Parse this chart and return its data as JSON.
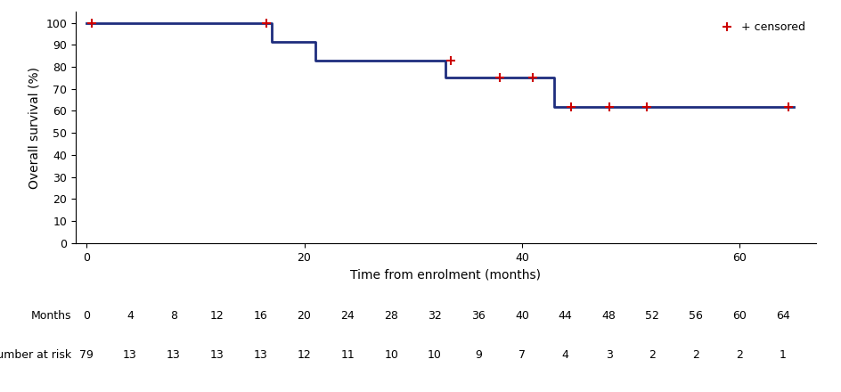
{
  "step_x": [
    0,
    17,
    21,
    25,
    33,
    38,
    43,
    65
  ],
  "step_y": [
    100.0,
    91.2,
    83.0,
    83.0,
    75.0,
    75.0,
    62.0,
    62.0
  ],
  "censored_x": [
    0.5,
    16.5,
    33.5,
    38.0,
    41.0,
    44.5,
    48.0,
    51.5,
    64.5
  ],
  "censored_y": [
    100.0,
    100.0,
    83.0,
    75.0,
    75.0,
    62.0,
    62.0,
    62.0,
    62.0
  ],
  "line_color": "#1e2d7d",
  "censored_color": "#cc0000",
  "xlabel": "Time from enrolment (months)",
  "ylabel": "Overall survival (%)",
  "xlim": [
    -1,
    67
  ],
  "ylim": [
    0,
    105
  ],
  "yticks": [
    0,
    10,
    20,
    30,
    40,
    50,
    60,
    70,
    80,
    90,
    100
  ],
  "xticks": [
    0,
    20,
    40,
    60
  ],
  "months_row": [
    0,
    4,
    8,
    12,
    16,
    20,
    24,
    28,
    32,
    36,
    40,
    44,
    48,
    52,
    56,
    60,
    64
  ],
  "risk_row": [
    79,
    13,
    13,
    13,
    13,
    12,
    11,
    10,
    10,
    9,
    7,
    4,
    3,
    2,
    2,
    2,
    1
  ],
  "row_label1": "Months",
  "row_label2": "Number at risk",
  "legend_text": "+ censored",
  "background_color": "#ffffff",
  "line_width": 2.0,
  "censored_markersize": 7
}
